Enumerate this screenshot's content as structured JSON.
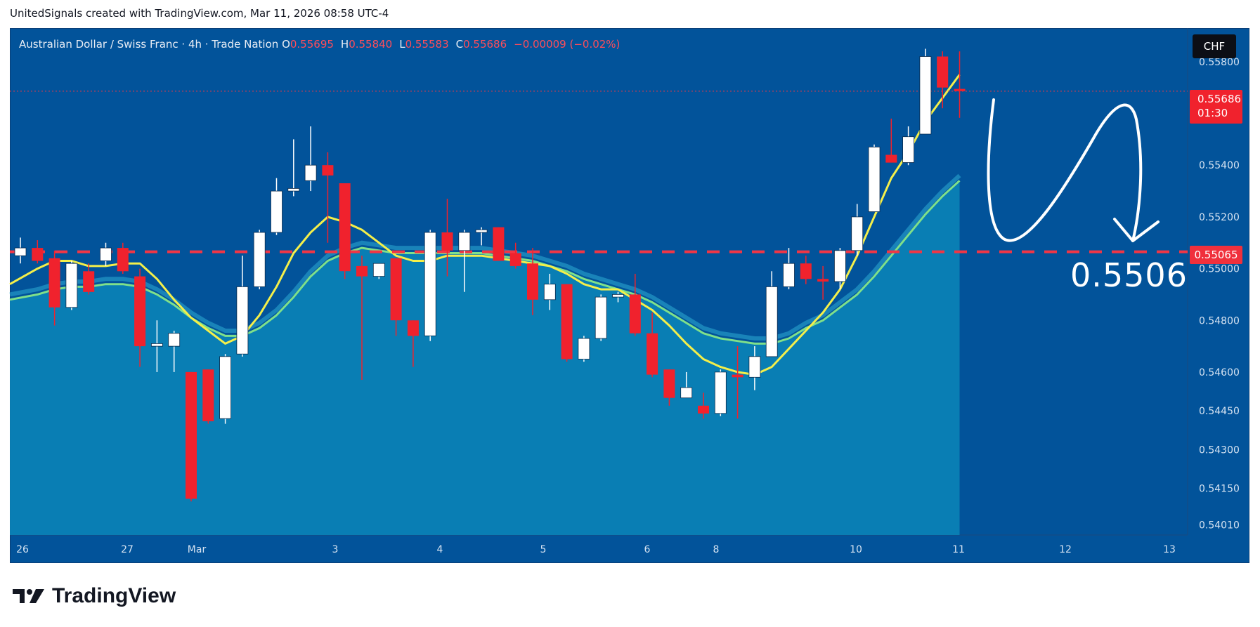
{
  "header": {
    "credit": "UnitedSignals created with TradingView.com, Mar 11, 2026 08:58 UTC-4"
  },
  "legend": {
    "symbol": "Australian Dollar / Swiss Franc · 4h · Trade Nation",
    "o_label": "O",
    "o": "0.55695",
    "h_label": "H",
    "h": "0.55840",
    "l_label": "L",
    "l": "0.55583",
    "c_label": "C",
    "c": "0.55686",
    "change": "−0.00009 (−0.02%)"
  },
  "currency_badge": "CHF",
  "last_price": {
    "price": "0.55686",
    "countdown": "01:30"
  },
  "level_price": "0.55065",
  "annotation": "0.5506",
  "footer": {
    "brand": "TradingView"
  },
  "colors": {
    "background": "#02539a",
    "up_candle": "#ffffff",
    "down_candle": "#f0222d",
    "fast_ma": "#f4ef4a",
    "slow_ma": "#7fe08a",
    "area": "#0a86b8",
    "level_line": "#f23645"
  },
  "chart_data": {
    "type": "candlestick",
    "ylim": [
      0.5397,
      0.5593
    ],
    "y_ticks": [
      "0.55800",
      "0.55400",
      "0.55200",
      "0.55000",
      "0.54800",
      "0.54600",
      "0.54450",
      "0.54300",
      "0.54150",
      "0.54010"
    ],
    "x_ticks": [
      "26",
      "27",
      "Mar",
      "3",
      "4",
      "5",
      "6",
      "8",
      "10",
      "11",
      "12",
      "13"
    ],
    "horizontal_level": 0.55065,
    "candles": [
      {
        "o": 0.5505,
        "h": 0.5512,
        "l": 0.5502,
        "c": 0.5508
      },
      {
        "o": 0.5508,
        "h": 0.5511,
        "l": 0.5502,
        "c": 0.5503
      },
      {
        "o": 0.5504,
        "h": 0.5507,
        "l": 0.5478,
        "c": 0.5485
      },
      {
        "o": 0.5485,
        "h": 0.5503,
        "l": 0.5484,
        "c": 0.5502
      },
      {
        "o": 0.5499,
        "h": 0.5502,
        "l": 0.549,
        "c": 0.5491
      },
      {
        "o": 0.5503,
        "h": 0.551,
        "l": 0.5501,
        "c": 0.5508
      },
      {
        "o": 0.5508,
        "h": 0.551,
        "l": 0.5498,
        "c": 0.5499
      },
      {
        "o": 0.5497,
        "h": 0.55,
        "l": 0.5462,
        "c": 0.547
      },
      {
        "o": 0.547,
        "h": 0.548,
        "l": 0.546,
        "c": 0.5471
      },
      {
        "o": 0.547,
        "h": 0.5476,
        "l": 0.546,
        "c": 0.5475
      },
      {
        "o": 0.546,
        "h": 0.546,
        "l": 0.541,
        "c": 0.5411
      },
      {
        "o": 0.5461,
        "h": 0.5461,
        "l": 0.544,
        "c": 0.5441
      },
      {
        "o": 0.5442,
        "h": 0.5467,
        "l": 0.544,
        "c": 0.5466
      },
      {
        "o": 0.5467,
        "h": 0.5505,
        "l": 0.5466,
        "c": 0.5493
      },
      {
        "o": 0.5493,
        "h": 0.5515,
        "l": 0.5492,
        "c": 0.5514
      },
      {
        "o": 0.5514,
        "h": 0.5535,
        "l": 0.5513,
        "c": 0.553
      },
      {
        "o": 0.553,
        "h": 0.555,
        "l": 0.5528,
        "c": 0.5531
      },
      {
        "o": 0.5534,
        "h": 0.5555,
        "l": 0.553,
        "c": 0.554
      },
      {
        "o": 0.554,
        "h": 0.5545,
        "l": 0.551,
        "c": 0.5536
      },
      {
        "o": 0.5533,
        "h": 0.5533,
        "l": 0.5496,
        "c": 0.5499
      },
      {
        "o": 0.5501,
        "h": 0.5505,
        "l": 0.5457,
        "c": 0.5497
      },
      {
        "o": 0.5497,
        "h": 0.5502,
        "l": 0.5496,
        "c": 0.5502
      },
      {
        "o": 0.5504,
        "h": 0.5504,
        "l": 0.5474,
        "c": 0.548
      },
      {
        "o": 0.548,
        "h": 0.548,
        "l": 0.5462,
        "c": 0.5474
      },
      {
        "o": 0.5474,
        "h": 0.5515,
        "l": 0.5472,
        "c": 0.5514
      },
      {
        "o": 0.5514,
        "h": 0.5527,
        "l": 0.5497,
        "c": 0.5507
      },
      {
        "o": 0.5507,
        "h": 0.5515,
        "l": 0.5491,
        "c": 0.5514
      },
      {
        "o": 0.5514,
        "h": 0.5516,
        "l": 0.5509,
        "c": 0.5515
      },
      {
        "o": 0.5516,
        "h": 0.5516,
        "l": 0.5503,
        "c": 0.5503
      },
      {
        "o": 0.5506,
        "h": 0.551,
        "l": 0.55,
        "c": 0.5501
      },
      {
        "o": 0.5502,
        "h": 0.5508,
        "l": 0.5482,
        "c": 0.5488
      },
      {
        "o": 0.5488,
        "h": 0.5498,
        "l": 0.5484,
        "c": 0.5494
      },
      {
        "o": 0.5494,
        "h": 0.5494,
        "l": 0.5464,
        "c": 0.5465
      },
      {
        "o": 0.5465,
        "h": 0.5474,
        "l": 0.5464,
        "c": 0.5473
      },
      {
        "o": 0.5473,
        "h": 0.549,
        "l": 0.5472,
        "c": 0.5489
      },
      {
        "o": 0.5489,
        "h": 0.5491,
        "l": 0.5487,
        "c": 0.549
      },
      {
        "o": 0.549,
        "h": 0.5498,
        "l": 0.5474,
        "c": 0.5475
      },
      {
        "o": 0.5475,
        "h": 0.5483,
        "l": 0.5458,
        "c": 0.5459
      },
      {
        "o": 0.5461,
        "h": 0.5461,
        "l": 0.5447,
        "c": 0.545
      },
      {
        "o": 0.545,
        "h": 0.546,
        "l": 0.545,
        "c": 0.5454
      },
      {
        "o": 0.5447,
        "h": 0.5452,
        "l": 0.5442,
        "c": 0.5444
      },
      {
        "o": 0.5444,
        "h": 0.5461,
        "l": 0.5443,
        "c": 0.546
      },
      {
        "o": 0.5459,
        "h": 0.547,
        "l": 0.5442,
        "c": 0.5458
      },
      {
        "o": 0.5458,
        "h": 0.547,
        "l": 0.5453,
        "c": 0.5466
      },
      {
        "o": 0.5466,
        "h": 0.5499,
        "l": 0.5466,
        "c": 0.5493
      },
      {
        "o": 0.5493,
        "h": 0.5508,
        "l": 0.5492,
        "c": 0.5502
      },
      {
        "o": 0.5502,
        "h": 0.5505,
        "l": 0.5494,
        "c": 0.5496
      },
      {
        "o": 0.5496,
        "h": 0.5501,
        "l": 0.5488,
        "c": 0.5495
      },
      {
        "o": 0.5495,
        "h": 0.5508,
        "l": 0.5492,
        "c": 0.5507
      },
      {
        "o": 0.5507,
        "h": 0.5525,
        "l": 0.5505,
        "c": 0.552
      },
      {
        "o": 0.5522,
        "h": 0.5548,
        "l": 0.5522,
        "c": 0.5547
      },
      {
        "o": 0.5544,
        "h": 0.5558,
        "l": 0.5541,
        "c": 0.5541
      },
      {
        "o": 0.5541,
        "h": 0.5555,
        "l": 0.554,
        "c": 0.5551
      },
      {
        "o": 0.5552,
        "h": 0.5585,
        "l": 0.5552,
        "c": 0.5582
      },
      {
        "o": 0.5582,
        "h": 0.5584,
        "l": 0.5562,
        "c": 0.557
      },
      {
        "o": 0.55695,
        "h": 0.5584,
        "l": 0.55583,
        "c": 0.55686
      }
    ],
    "fast_ma": [
      0.5494,
      0.55,
      0.5503,
      0.5503,
      0.5501,
      0.5501,
      0.5502,
      0.5502,
      0.5496,
      0.5488,
      0.5481,
      0.5476,
      0.5471,
      0.5474,
      0.5482,
      0.5493,
      0.5506,
      0.5514,
      0.552,
      0.5518,
      0.5515,
      0.551,
      0.5505,
      0.5503,
      0.5503,
      0.5505,
      0.5505,
      0.5505,
      0.5504,
      0.5503,
      0.5502,
      0.5501,
      0.5498,
      0.5494,
      0.5492,
      0.5492,
      0.5488,
      0.5484,
      0.5478,
      0.5471,
      0.5465,
      0.5462,
      0.546,
      0.5459,
      0.5462,
      0.5469,
      0.5476,
      0.5483,
      0.5492,
      0.5505,
      0.552,
      0.5535,
      0.5545,
      0.5557,
      0.5566,
      0.5575
    ],
    "slow_ma": [
      0.5488,
      0.549,
      0.5492,
      0.5493,
      0.5493,
      0.5494,
      0.5494,
      0.5493,
      0.549,
      0.5486,
      0.5481,
      0.5477,
      0.5474,
      0.5474,
      0.5477,
      0.5482,
      0.5489,
      0.5497,
      0.5503,
      0.5506,
      0.5508,
      0.5507,
      0.5506,
      0.5506,
      0.5506,
      0.5506,
      0.5506,
      0.5506,
      0.5505,
      0.5504,
      0.5503,
      0.5501,
      0.5499,
      0.5496,
      0.5494,
      0.5492,
      0.549,
      0.5487,
      0.5483,
      0.5479,
      0.5475,
      0.5473,
      0.5472,
      0.5471,
      0.5471,
      0.5473,
      0.5477,
      0.548,
      0.5485,
      0.549,
      0.5497,
      0.5505,
      0.5513,
      0.5521,
      0.5528,
      0.5534
    ]
  }
}
